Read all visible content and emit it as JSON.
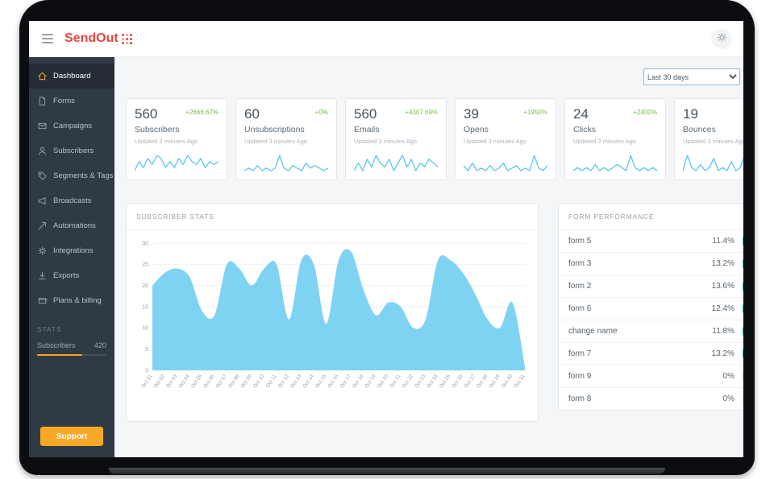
{
  "header": {
    "logo_text": "SendOut"
  },
  "sidebar": {
    "items": [
      {
        "label": "Dashboard",
        "icon": "home",
        "active": true
      },
      {
        "label": "Forms",
        "icon": "document",
        "active": false
      },
      {
        "label": "Campaigns",
        "icon": "envelope",
        "active": false
      },
      {
        "label": "Subscribers",
        "icon": "user",
        "active": false
      },
      {
        "label": "Segments & Tags",
        "icon": "tag",
        "active": false
      },
      {
        "label": "Broadcasts",
        "icon": "megaphone",
        "active": false
      },
      {
        "label": "Automations",
        "icon": "send",
        "active": false
      },
      {
        "label": "Integrations",
        "icon": "gear",
        "active": false
      },
      {
        "label": "Exports",
        "icon": "download",
        "active": false
      },
      {
        "label": "Plans & billing",
        "icon": "billing",
        "active": false
      }
    ],
    "stats_heading": "STATS",
    "stats_row": {
      "label": "Subscribers",
      "value": "420",
      "progress_pct": 65
    },
    "support_label": "Support"
  },
  "controls": {
    "date_range_value": "Last 30 days"
  },
  "stat_cards": [
    {
      "value": "560",
      "delta": "+2666.67%",
      "label": "Subscribers",
      "updated": "Updated 3 minutes Ago",
      "spark": [
        5,
        8,
        6,
        9,
        7,
        10,
        9,
        6,
        8,
        6,
        9,
        7,
        10,
        8,
        7,
        9,
        6,
        8,
        7,
        8
      ]
    },
    {
      "value": "60",
      "delta": "+0%",
      "label": "Unsubscriptions",
      "updated": "Updated 3 minutes Ago",
      "spark": [
        5,
        6,
        5,
        7,
        5,
        6,
        5,
        6,
        11,
        6,
        5,
        7,
        6,
        5,
        8,
        6,
        7,
        6,
        5,
        6
      ]
    },
    {
      "value": "560",
      "delta": "+4307.69%",
      "label": "Emails",
      "updated": "Updated 3 minutes Ago",
      "spark": [
        6,
        8,
        6,
        9,
        7,
        10,
        8,
        7,
        9,
        6,
        8,
        10,
        7,
        9,
        6,
        8,
        7,
        9,
        8,
        7
      ]
    },
    {
      "value": "39",
      "delta": "+1950%",
      "label": "Opens",
      "updated": "Updated 3 minutes Ago",
      "spark": [
        7,
        5,
        8,
        5,
        6,
        5,
        7,
        5,
        6,
        8,
        5,
        6,
        7,
        5,
        6,
        5,
        11,
        6,
        5,
        7
      ]
    },
    {
      "value": "24",
      "delta": "+2400%",
      "label": "Clicks",
      "updated": "Updated 3 minutes Ago",
      "spark": [
        5,
        6,
        5,
        6,
        5,
        7,
        5,
        6,
        5,
        6,
        7,
        6,
        5,
        10,
        6,
        5,
        6,
        5,
        6,
        5
      ]
    },
    {
      "value": "19",
      "delta": "",
      "label": "Bounces",
      "updated": "Updated 3 minutes Ago",
      "spark": [
        5,
        10,
        6,
        5,
        7,
        5,
        6,
        9,
        5,
        6,
        5,
        8,
        5,
        6,
        10,
        5,
        6,
        5,
        7,
        5
      ]
    }
  ],
  "chart_data": [
    {
      "type": "area",
      "title": "SUBSCRIBER STATS",
      "x": [
        "Oct 01",
        "Oct 02",
        "Oct 03",
        "Oct 04",
        "Oct 05",
        "Oct 06",
        "Oct 07",
        "Oct 08",
        "Oct 09",
        "Oct 10",
        "Oct 11",
        "Oct 12",
        "Oct 13",
        "Oct 14",
        "Oct 15",
        "Oct 16",
        "Oct 17",
        "Oct 18",
        "Oct 19",
        "Oct 20",
        "Oct 21",
        "Oct 22",
        "Oct 23",
        "Oct 24",
        "Oct 25",
        "Oct 26",
        "Oct 27",
        "Oct 28",
        "Oct 29",
        "Oct 30",
        "Oct 31"
      ],
      "values": [
        20,
        23,
        24,
        22,
        14,
        13,
        25,
        24,
        20,
        24,
        25,
        12,
        26,
        25,
        11,
        26,
        28,
        19,
        13,
        16,
        15,
        10,
        12,
        26,
        26,
        23,
        18,
        12,
        10,
        16,
        1
      ],
      "ylim": [
        0,
        30
      ],
      "yticks": [
        0,
        5,
        10,
        15,
        20,
        25,
        30
      ],
      "grid": true,
      "legend": "none",
      "fill_color": "#7ed3f3"
    },
    {
      "type": "table",
      "title": "FORM PERFORMANCE",
      "columns": [
        "name",
        "value"
      ],
      "rows": [
        {
          "name": "form 5",
          "value": "11.4%"
        },
        {
          "name": "form 3",
          "value": "13.2%"
        },
        {
          "name": "form 2",
          "value": "13.6%"
        },
        {
          "name": "form 6",
          "value": "12.4%"
        },
        {
          "name": "change name",
          "value": "11.8%"
        },
        {
          "name": "form 7",
          "value": "13.2%"
        },
        {
          "name": "form 9",
          "value": "0%"
        },
        {
          "name": "form 8",
          "value": "0%"
        }
      ]
    }
  ],
  "colors": {
    "brand_red": "#e8463c",
    "brand_red_light": "#f2a39c",
    "accent_orange": "#f5a623",
    "positive_green": "#7bc144",
    "spark_blue": "#5bc6f2",
    "area_blue": "#7ed3f3",
    "tick_teal": "#22c3a6",
    "tick_muted": "#d7dde0"
  }
}
